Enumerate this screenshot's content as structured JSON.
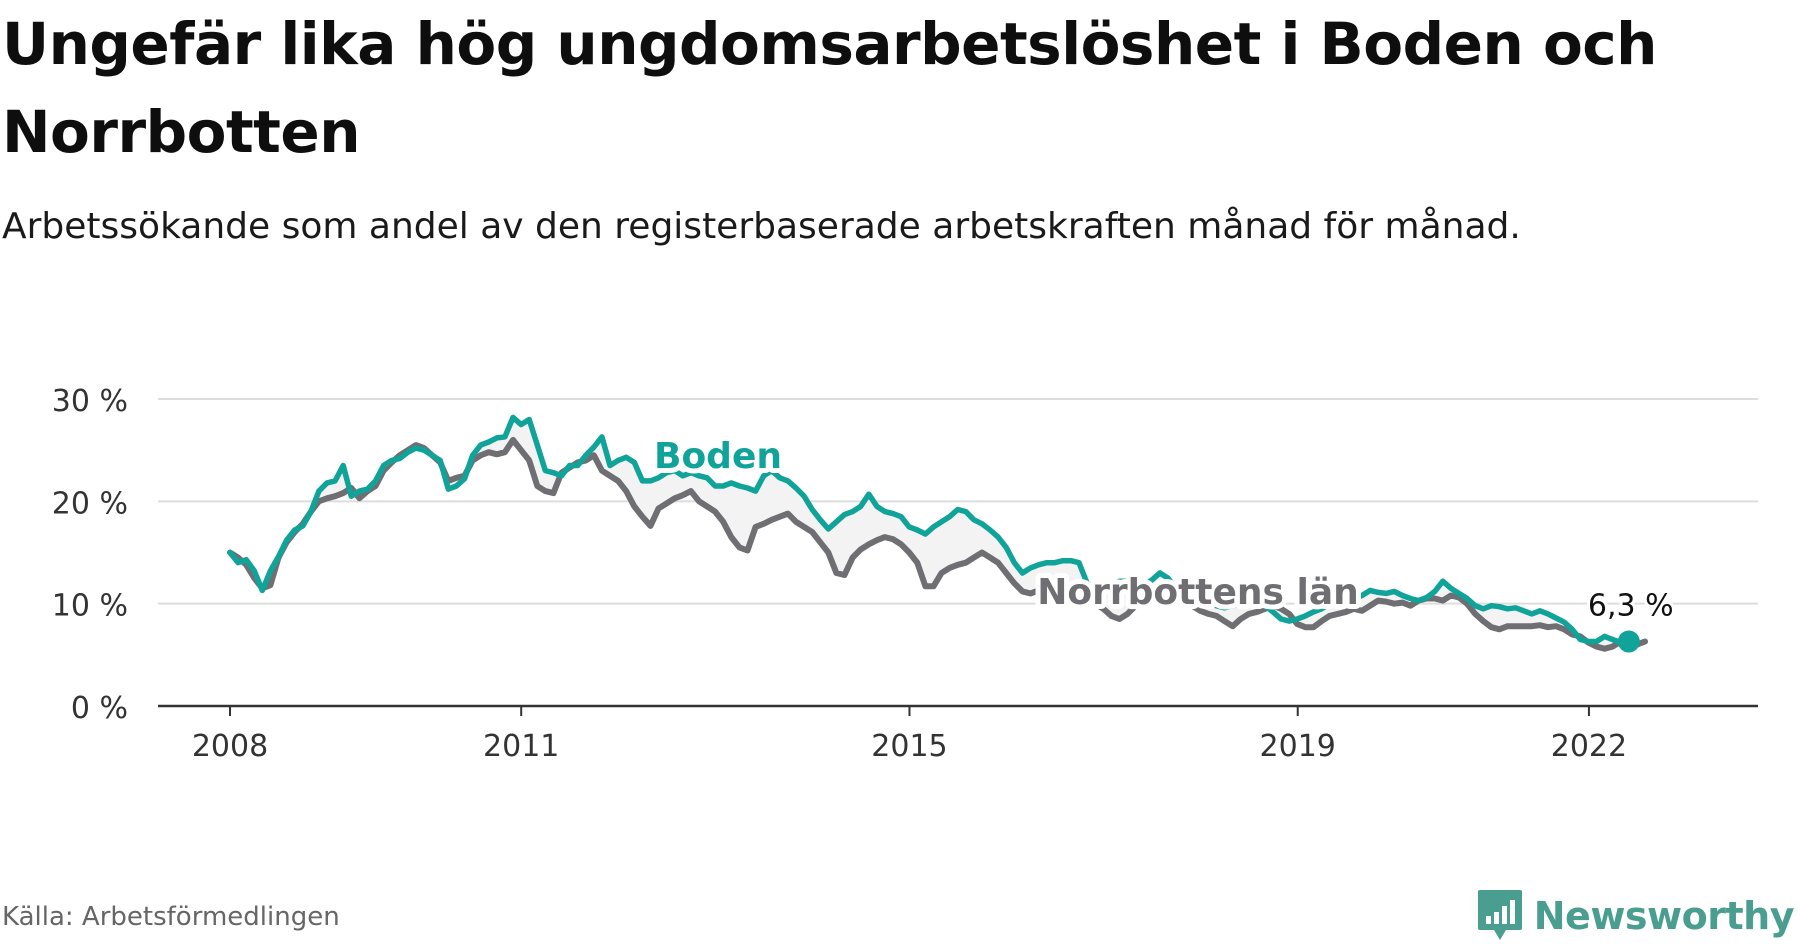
{
  "title": "Ungefär lika hög ungdomsarbetslöshet i Boden och Norrbotten",
  "subtitle": "Arbetssökande som andel av den registerbaserade arbetskraften månad för månad.",
  "source": "Källa: Arbetsförmedlingen",
  "brand": {
    "name": "Newsworthy",
    "icon": "newsworthy-logo-icon",
    "color": "#4a9e90"
  },
  "colors": {
    "boden": "#10a39a",
    "norrbotten": "#6f6f73",
    "grid": "#dddddd",
    "axis": "#333333",
    "band": "#f3f3f3"
  },
  "chart_data": {
    "type": "line",
    "title": "Ungefär lika hög ungdomsarbetslöshet i Boden och Norrbotten",
    "xlabel": "",
    "ylabel": "",
    "x_start_year": 2008.0,
    "x_step": 0.0833,
    "xlim": [
      2008.0,
      2023.8
    ],
    "ylim": [
      0,
      30
    ],
    "y_ticks": [
      0,
      10,
      20,
      30
    ],
    "y_tick_labels": [
      "0 %",
      "10 %",
      "20 %",
      "30 %"
    ],
    "x_ticks": [
      2008,
      2011,
      2015,
      2019,
      2022
    ],
    "x_tick_labels": [
      "2008",
      "2011",
      "2015",
      "2019",
      "2022"
    ],
    "grid": true,
    "series": [
      {
        "name": "Boden",
        "label": "Boden",
        "end_label": "6,3 %",
        "values": [
          15.0,
          14.0,
          14.3,
          13.2,
          11.3,
          13.2,
          14.6,
          16.2,
          17.2,
          17.6,
          19.0,
          21.0,
          21.8,
          22.0,
          23.5,
          20.5,
          21.0,
          21.2,
          22.0,
          23.5,
          24.0,
          24.2,
          24.8,
          25.2,
          25.0,
          24.5,
          24.0,
          21.2,
          21.5,
          22.2,
          24.5,
          25.5,
          25.8,
          26.2,
          26.3,
          28.2,
          27.5,
          28.0,
          25.5,
          23.0,
          22.8,
          22.5,
          23.5,
          23.5,
          24.5,
          25.3,
          26.3,
          23.5,
          24.0,
          24.3,
          23.8,
          22.0,
          22.0,
          22.3,
          22.8,
          23.0,
          22.5,
          22.8,
          22.5,
          22.3,
          21.5,
          21.5,
          21.8,
          21.5,
          21.3,
          21.0,
          22.5,
          23.0,
          22.3,
          22.0,
          21.3,
          20.5,
          19.2,
          18.2,
          17.3,
          18.0,
          18.7,
          19.0,
          19.5,
          20.7,
          19.5,
          19.0,
          18.8,
          18.5,
          17.5,
          17.2,
          16.8,
          17.5,
          18.0,
          18.5,
          19.2,
          19.0,
          18.2,
          17.8,
          17.2,
          16.5,
          15.5,
          14.0,
          13.0,
          13.5,
          13.8,
          14.0,
          14.0,
          14.2,
          14.2,
          14.0,
          12.0,
          11.5,
          11.5,
          11.8,
          12.2,
          12.2,
          11.8,
          11.8,
          12.3,
          13.0,
          12.5,
          11.5,
          11.0,
          10.5,
          10.5,
          10.0,
          9.8,
          9.6,
          9.8,
          10.0,
          10.2,
          10.1,
          9.8,
          9.2,
          8.5,
          8.3,
          8.5,
          8.8,
          9.2,
          9.5,
          10.0,
          10.8,
          10.6,
          10.5,
          10.8,
          11.3,
          11.1,
          11.0,
          11.2,
          10.8,
          10.5,
          10.3,
          10.6,
          11.2,
          12.2,
          11.5,
          11.0,
          10.5,
          9.8,
          9.5,
          9.8,
          9.7,
          9.5,
          9.6,
          9.3,
          9.0,
          9.3,
          9.0,
          8.6,
          8.2,
          7.5,
          6.5,
          6.3,
          6.3,
          6.8,
          6.5,
          6.2,
          6.3
        ]
      },
      {
        "name": "Norrbottens län",
        "label": "Norrbottens län",
        "values": [
          15.0,
          14.5,
          13.8,
          12.5,
          11.5,
          11.8,
          14.5,
          16.0,
          17.0,
          17.8,
          19.0,
          20.0,
          20.3,
          20.5,
          20.8,
          21.3,
          20.3,
          21.0,
          21.5,
          23.0,
          23.8,
          24.5,
          25.0,
          25.5,
          25.2,
          24.5,
          23.8,
          22.0,
          22.3,
          22.5,
          24.0,
          24.5,
          24.8,
          24.6,
          24.8,
          26.0,
          25.0,
          24.0,
          21.5,
          21.0,
          20.8,
          22.8,
          23.3,
          23.8,
          24.0,
          24.5,
          23.0,
          22.5,
          22.0,
          21.0,
          19.5,
          18.5,
          17.6,
          19.3,
          19.8,
          20.3,
          20.6,
          21.0,
          20.0,
          19.5,
          19.0,
          18.0,
          16.5,
          15.5,
          15.2,
          17.5,
          17.8,
          18.2,
          18.5,
          18.8,
          18.0,
          17.5,
          17.0,
          16.0,
          15.0,
          13.0,
          12.8,
          14.5,
          15.3,
          15.8,
          16.2,
          16.5,
          16.3,
          15.8,
          15.0,
          14.0,
          11.7,
          11.7,
          13.0,
          13.5,
          13.8,
          14.0,
          14.5,
          15.0,
          14.5,
          14.0,
          13.0,
          12.0,
          11.2,
          11.0,
          11.3,
          11.5,
          11.5,
          11.2,
          10.8,
          10.5,
          10.3,
          10.0,
          9.5,
          8.8,
          8.5,
          9.0,
          9.8,
          10.0,
          10.3,
          10.5,
          10.8,
          10.6,
          10.2,
          9.8,
          9.3,
          9.0,
          8.8,
          8.3,
          7.8,
          8.5,
          9.0,
          9.2,
          9.5,
          9.8,
          9.5,
          9.0,
          8.0,
          7.7,
          7.7,
          8.3,
          8.8,
          9.0,
          9.2,
          9.5,
          9.3,
          9.8,
          10.3,
          10.2,
          10.0,
          10.1,
          9.8,
          10.3,
          10.5,
          10.5,
          10.3,
          10.8,
          10.6,
          10.0,
          9.0,
          8.3,
          7.7,
          7.5,
          7.8,
          7.8,
          7.8,
          7.8,
          7.9,
          7.7,
          7.8,
          7.5,
          7.0,
          6.8,
          6.2,
          5.8,
          5.6,
          5.8,
          6.3,
          6.2,
          6.0,
          6.3
        ]
      }
    ]
  }
}
